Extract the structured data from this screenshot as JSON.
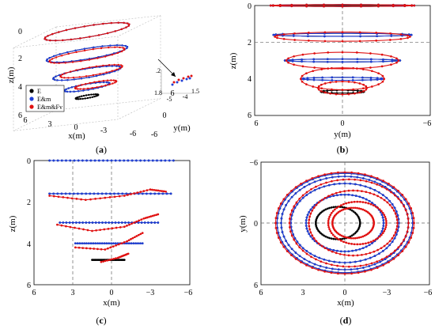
{
  "figure": {
    "panel_labels": [
      {
        "pre": "(",
        "letter": "a",
        "post": ")"
      },
      {
        "pre": "(",
        "letter": "b",
        "post": ")"
      },
      {
        "pre": "(",
        "letter": "c",
        "post": ")"
      },
      {
        "pre": "(",
        "letter": "d",
        "post": ")"
      }
    ],
    "legend": [
      "E",
      "E&m",
      "E&m&Fv"
    ],
    "colors": {
      "E": "#000000",
      "E&m": "#1f3fd6",
      "E&m&Fv": "#e01010",
      "axis": "#000000",
      "guide": "#666666"
    }
  },
  "chart_data": [
    {
      "panel": "a",
      "type": "scatter",
      "view": "3d",
      "xlabel": "x(m)",
      "ylabel": "y(m)",
      "zlabel": "z(m)",
      "xticks": [
        "6",
        "3",
        "0",
        "-3",
        "-6"
      ],
      "yticks": [
        "6",
        "0",
        "-6"
      ],
      "zticks": [
        "0",
        "2",
        "4",
        "6"
      ],
      "inset_ticks": [
        ".2",
        "1.8",
        "-5",
        "-4",
        "1.5"
      ],
      "series": [
        {
          "name": "E",
          "rings": [
            {
              "z": 0,
              "r": 4.5,
              "cx": 0,
              "cy": 0
            },
            {
              "z": 1.6,
              "r": 4.3,
              "cx": 0,
              "cy": 0
            },
            {
              "z": 3.0,
              "r": 3.6,
              "cx": 0,
              "cy": 0
            },
            {
              "z": 4.0,
              "r": 2.4,
              "cx": 0,
              "cy": 0
            },
            {
              "z": 4.7,
              "r": 1.2,
              "cx": 0,
              "cy": 0
            }
          ]
        },
        {
          "name": "E&m",
          "rings": [
            {
              "z": 0,
              "r": 4.5,
              "cx": 0,
              "cy": 0
            },
            {
              "z": 1.6,
              "r": 4.3,
              "cx": 0,
              "cy": 0
            },
            {
              "z": 3.0,
              "r": 3.6,
              "cx": 0,
              "cy": 0
            },
            {
              "z": 4.0,
              "r": 2.4,
              "cx": 0,
              "cy": 0
            }
          ]
        },
        {
          "name": "E&m&Fv",
          "rings": [
            {
              "z": 0,
              "r": 4.5,
              "cx": 0,
              "cy": 0
            },
            {
              "z": 1.7,
              "r": 4.0,
              "cx": 0,
              "cy": 0
            },
            {
              "z": 2.9,
              "r": 3.3,
              "cx": -0.5,
              "cy": 0
            },
            {
              "z": 3.9,
              "r": 2.2,
              "cx": -1.0,
              "cy": 0
            }
          ]
        }
      ]
    },
    {
      "panel": "b",
      "type": "scatter",
      "view": "y-z",
      "xlabel": "y(m)",
      "ylabel": "z(m)",
      "xlim": [
        6,
        -6
      ],
      "ylim": [
        0,
        6
      ],
      "xticks": [
        "6",
        "0",
        "−6"
      ],
      "yticks": [
        "0",
        "2",
        "4",
        "6"
      ],
      "guides": {
        "vertical_at": 0,
        "horizontal_at": 2
      },
      "series": [
        {
          "name": "E",
          "rings": [
            {
              "z": 0,
              "half_width": 5.0,
              "thickness": 0.05
            },
            {
              "z": 1.6,
              "half_width": 4.8,
              "thickness": 0.08
            },
            {
              "z": 3.0,
              "half_width": 4.0,
              "thickness": 0.08
            },
            {
              "z": 4.0,
              "half_width": 2.8,
              "thickness": 0.08
            },
            {
              "z": 4.7,
              "half_width": 1.5,
              "thickness": 0.08
            }
          ]
        },
        {
          "name": "E&m",
          "rings": [
            {
              "z": 0,
              "half_width": 5.0,
              "thickness": 0.05
            },
            {
              "z": 1.6,
              "half_width": 4.8,
              "thickness": 0.08
            },
            {
              "z": 3.0,
              "half_width": 4.0,
              "thickness": 0.08
            },
            {
              "z": 4.0,
              "half_width": 2.8,
              "thickness": 0.08
            }
          ]
        },
        {
          "name": "E&m&Fv",
          "rings": [
            {
              "z": 0,
              "half_width": 5.0,
              "thickness": 0.05
            },
            {
              "z": 1.7,
              "half_width": 4.7,
              "thickness": 0.25
            },
            {
              "z": 3.0,
              "half_width": 3.9,
              "thickness": 0.45
            },
            {
              "z": 4.0,
              "half_width": 2.9,
              "thickness": 0.6
            },
            {
              "z": 4.5,
              "half_width": 1.7,
              "thickness": 0.35
            }
          ]
        }
      ]
    },
    {
      "panel": "c",
      "type": "scatter",
      "view": "x-z",
      "xlabel": "x(m)",
      "ylabel": "z(m)",
      "xlim": [
        6,
        -6
      ],
      "ylim": [
        0,
        6
      ],
      "xticks": [
        "6",
        "3",
        "0",
        "−3",
        "−6"
      ],
      "yticks": [
        "0",
        "2",
        "4",
        "6"
      ],
      "guides": {
        "vertical_at": [
          3,
          0
        ]
      },
      "series": [
        {
          "name": "E",
          "segments": [
            {
              "z": 0,
              "x1": 4.8,
              "x2": -4.8
            },
            {
              "z": 1.6,
              "x1": 4.8,
              "x2": -4.6
            },
            {
              "z": 3.0,
              "x1": 4.0,
              "x2": -3.6
            },
            {
              "z": 4.0,
              "x1": 2.8,
              "x2": -2.4
            },
            {
              "z": 4.8,
              "x1": 1.5,
              "x2": -1.0
            }
          ]
        },
        {
          "name": "E&m",
          "segments": [
            {
              "z": 0,
              "x1": 4.8,
              "x2": -4.8
            },
            {
              "z": 1.6,
              "x1": 4.8,
              "x2": -4.6
            },
            {
              "z": 3.0,
              "x1": 4.0,
              "x2": -3.6
            },
            {
              "z": 4.0,
              "x1": 2.8,
              "x2": -2.4
            }
          ]
        },
        {
          "name": "E&m&Fv",
          "curves": [
            {
              "points": [
                [
                  4.8,
                  1.7
                ],
                [
                  2.0,
                  1.9
                ],
                [
                  -1.0,
                  1.7
                ],
                [
                  -3.0,
                  1.4
                ],
                [
                  -4.2,
                  1.5
                ]
              ]
            },
            {
              "points": [
                [
                  4.2,
                  3.1
                ],
                [
                  1.5,
                  3.4
                ],
                [
                  -1.0,
                  3.2
                ],
                [
                  -2.5,
                  2.8
                ],
                [
                  -3.6,
                  2.6
                ]
              ]
            },
            {
              "points": [
                [
                  2.8,
                  4.2
                ],
                [
                  0.5,
                  4.3
                ],
                [
                  -1.2,
                  3.9
                ],
                [
                  -2.4,
                  3.5
                ]
              ]
            },
            {
              "points": [
                [
                  0.8,
                  4.9
                ],
                [
                  -0.5,
                  4.7
                ],
                [
                  -1.3,
                  4.5
                ]
              ]
            }
          ]
        }
      ]
    },
    {
      "panel": "d",
      "type": "scatter",
      "view": "x-y",
      "xlabel": "x(m)",
      "ylabel": "y(m)",
      "xlim": [
        6,
        -6
      ],
      "ylim": [
        -6,
        6
      ],
      "xticks": [
        "6",
        "3",
        "0",
        "−3",
        "−6"
      ],
      "yticks": [
        "−6",
        "0",
        "6"
      ],
      "guides": {
        "vertical_at": 0,
        "horizontal_at": 0
      },
      "series": [
        {
          "name": "E",
          "circles": [
            {
              "cx": 0,
              "cy": 0,
              "r": 4.9
            },
            {
              "cx": 0,
              "cy": 0,
              "r": 4.6
            },
            {
              "cx": 0,
              "cy": 0,
              "r": 3.9
            },
            {
              "cx": 0,
              "cy": 0,
              "r": 2.8
            },
            {
              "cx": 0.5,
              "cy": 0,
              "r": 1.6
            }
          ]
        },
        {
          "name": "E&m",
          "circles": [
            {
              "cx": 0,
              "cy": 0,
              "r": 4.9
            },
            {
              "cx": 0,
              "cy": 0,
              "r": 4.6
            },
            {
              "cx": 0,
              "cy": 0,
              "r": 3.9
            },
            {
              "cx": 0,
              "cy": 0,
              "r": 2.8
            }
          ]
        },
        {
          "name": "E&m&Fv",
          "circles": [
            {
              "cx": 0,
              "cy": 0,
              "r": 5.0
            },
            {
              "cx": -0.3,
              "cy": 0,
              "r": 4.3
            },
            {
              "cx": -0.6,
              "cy": 0,
              "r": 3.2
            },
            {
              "cx": -0.9,
              "cy": 0,
              "r": 2.1
            },
            {
              "cx": -0.6,
              "cy": 0,
              "r": 1.5
            }
          ]
        }
      ]
    }
  ]
}
